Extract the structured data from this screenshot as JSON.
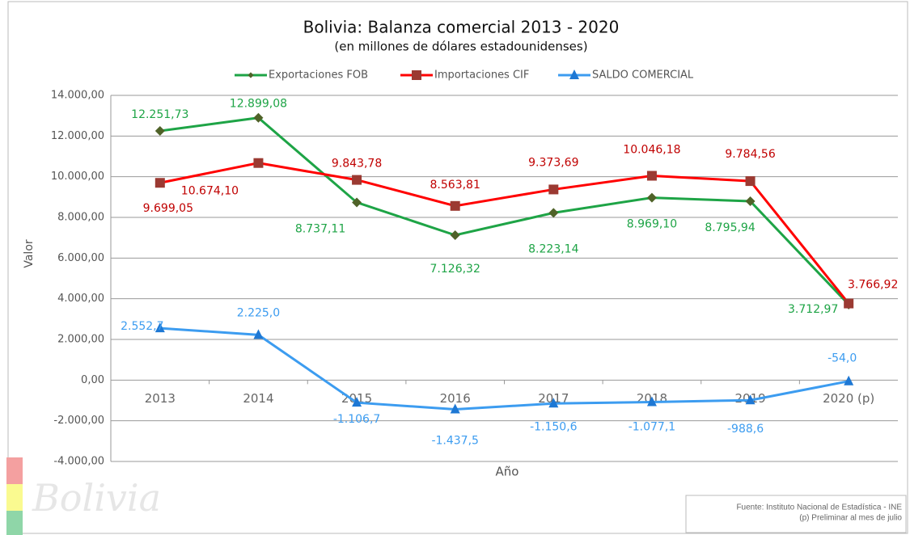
{
  "chart_data": {
    "type": "line",
    "title": "Bolivia: Balanza comercial 2013 - 2020",
    "subtitle": "(en millones  de dólares estadounidenses)",
    "y_label": "Valor",
    "x_label": "Año",
    "categories": [
      "2013",
      "2014",
      "2015",
      "2016",
      "2017",
      "2018",
      "2019",
      "2020 (p)"
    ],
    "series": [
      {
        "name": "Exportaciones FOB",
        "color": "#1ea446",
        "marker_color": "#4f6228",
        "label_color": "#1ea446",
        "values": [
          12251.73,
          12899.08,
          8737.11,
          7126.32,
          8223.14,
          8969.1,
          8795.94,
          3712.97
        ],
        "value_labels": [
          "12.251,73",
          "12.899,08",
          "8.737,11",
          "7.126,32",
          "8.223,14",
          "8.969,10",
          "8.795,94",
          "3.712,97"
        ]
      },
      {
        "name": "Importaciones CIF",
        "color": "#ff0000",
        "marker_color": "#9b3a32",
        "label_color": "#c00000",
        "values": [
          9699.05,
          10674.1,
          9843.78,
          8563.81,
          9373.69,
          10046.18,
          9784.56,
          3766.92
        ],
        "value_labels": [
          "9.699,05",
          "10.674,10",
          "9.843,78",
          "8.563,81",
          "9.373,69",
          "10.046,18",
          "9.784,56",
          "3.766,92"
        ]
      },
      {
        "name": "SALDO COMERCIAL",
        "color": "#3c9cf0",
        "marker_color": "#1e78d4",
        "label_color": "#3c9cf0",
        "values": [
          2552.7,
          2225.0,
          -1106.7,
          -1437.5,
          -1150.6,
          -1077.1,
          -988.6,
          -54.0
        ],
        "value_labels": [
          "2.552,7",
          "2.225,0",
          "-1.106,7",
          "-1.437,5",
          "-1.150,6",
          "-1.077,1",
          "-988,6",
          "-54,0"
        ]
      }
    ],
    "ylim": [
      -4000,
      14000
    ],
    "yticks": [
      {
        "value": -4000,
        "label": "-4.000,00"
      },
      {
        "value": -2000,
        "label": "-2.000,00"
      },
      {
        "value": 0,
        "label": "0,00"
      },
      {
        "value": 2000,
        "label": "2.000,00"
      },
      {
        "value": 4000,
        "label": "4.000,00"
      },
      {
        "value": 6000,
        "label": "6.000,00"
      },
      {
        "value": 8000,
        "label": "8.000,00"
      },
      {
        "value": 10000,
        "label": "10.000,00"
      },
      {
        "value": 12000,
        "label": "12.000,00"
      },
      {
        "value": 14000,
        "label": "14.000,00"
      }
    ],
    "grid": true,
    "legend": "top",
    "source": [
      "Fuente: Instituto Nacional de Estadística - INE",
      "(p) Preliminar al mes de julio"
    ],
    "watermark": "Bolivia"
  }
}
